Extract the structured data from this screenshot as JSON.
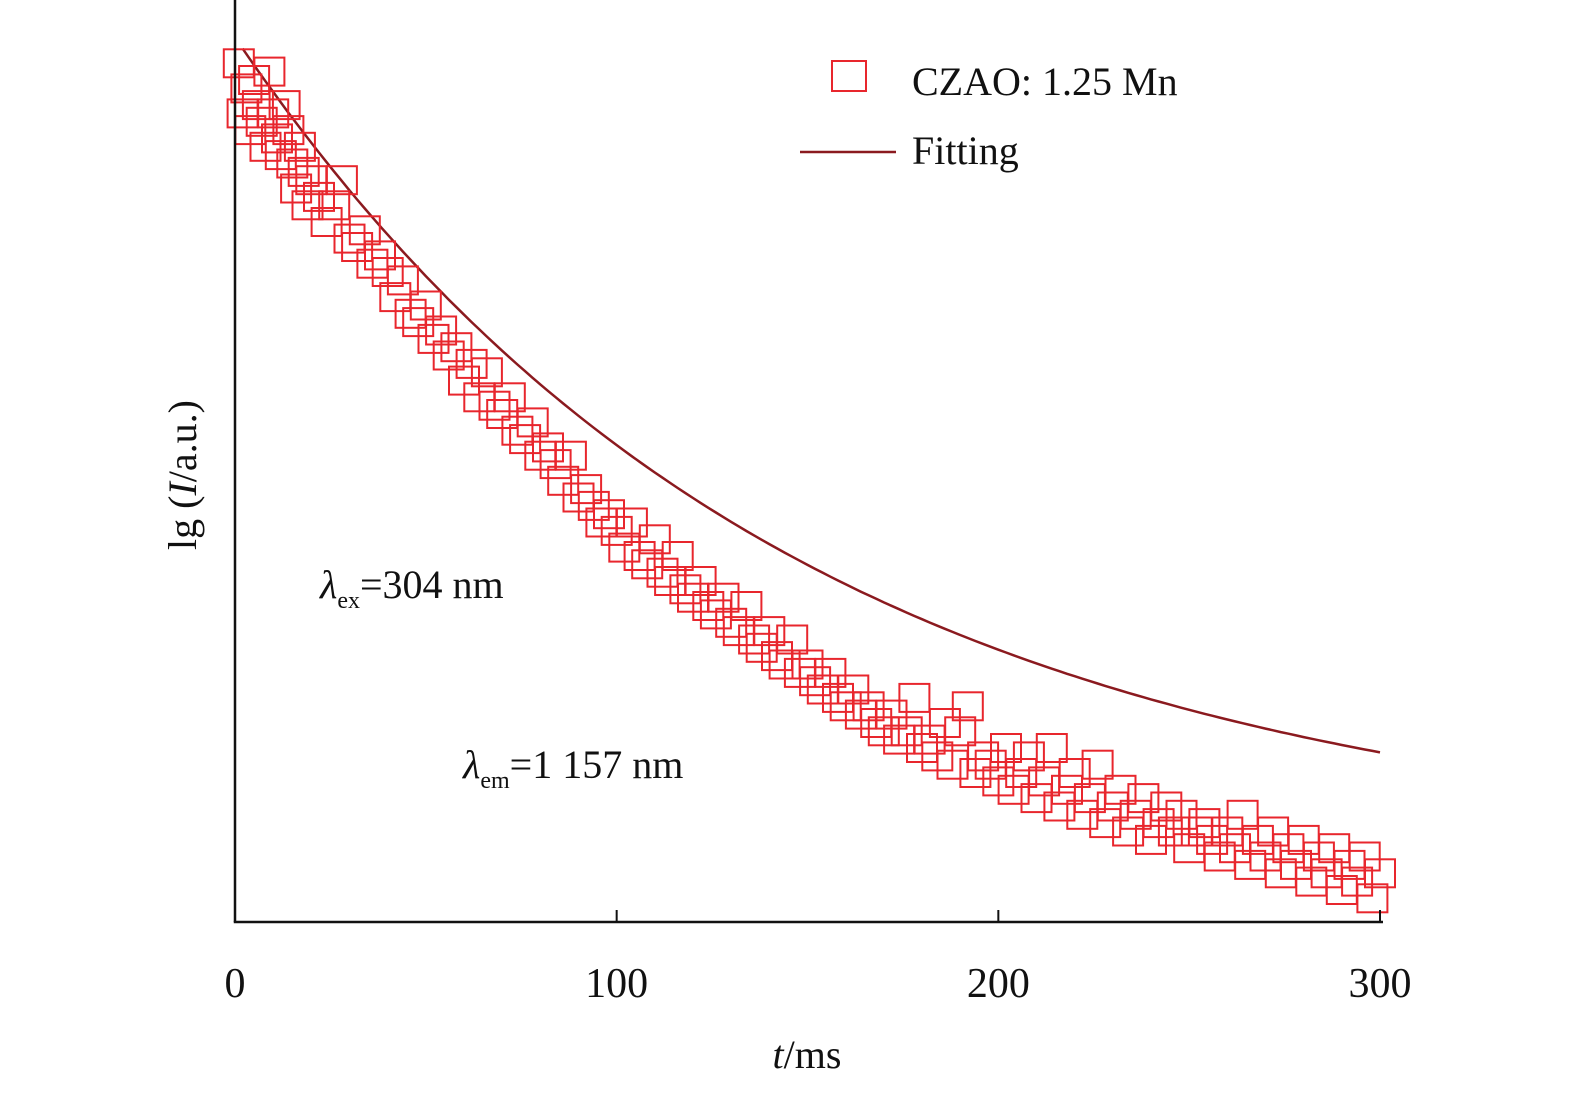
{
  "chart_data": {
    "type": "scatter",
    "title": "",
    "xlabel_italic": "t",
    "xlabel_rest": "/ms",
    "ylabel_prefix": "lg (",
    "ylabel_italic": "I",
    "ylabel_suffix": "/a.u.)",
    "xlim": [
      0,
      300
    ],
    "ylim": [
      0,
      1
    ],
    "x_ticks": [
      0,
      100,
      200,
      300
    ],
    "x_tick_labels": [
      "0",
      "100",
      "200",
      "300"
    ],
    "y_ticks_labeled": false,
    "legend_position": "top-right",
    "legend": [
      {
        "label": "CZAO: 1.25 Mn",
        "marker": "open-square"
      },
      {
        "label": "Fitting",
        "marker": "line"
      }
    ],
    "annotations": [
      {
        "symbol": "λ",
        "subscript": "ex",
        "text": "=304 nm"
      },
      {
        "symbol": "λ",
        "subscript": "em",
        "text": "=1 157 nm"
      }
    ],
    "colors": {
      "data": "#e8262d",
      "fit": "#8b1a1f",
      "axis": "#111111"
    },
    "fit": {
      "model": "y = A·exp(-x/tau) + C",
      "A": 0.98,
      "tau": 145,
      "C": 0.071,
      "x_range": [
        2,
        300
      ]
    },
    "series": [
      {
        "name": "CZAO: 1.25 Mn",
        "x": [
          1,
          2,
          3,
          4,
          5,
          6,
          7,
          8,
          9,
          10,
          11,
          12,
          13,
          14,
          15,
          16,
          17,
          18,
          19,
          20,
          22,
          24,
          26,
          28,
          30,
          32,
          34,
          36,
          38,
          40,
          42,
          44,
          46,
          48,
          50,
          52,
          54,
          56,
          58,
          60,
          62,
          64,
          66,
          68,
          70,
          72,
          74,
          76,
          78,
          80,
          82,
          84,
          86,
          88,
          90,
          92,
          94,
          96,
          98,
          100,
          102,
          104,
          106,
          108,
          110,
          112,
          114,
          116,
          118,
          120,
          122,
          124,
          126,
          128,
          130,
          132,
          134,
          136,
          138,
          140,
          142,
          144,
          146,
          148,
          150,
          152,
          154,
          156,
          158,
          160,
          162,
          164,
          166,
          168,
          170,
          172,
          174,
          176,
          178,
          180,
          182,
          184,
          186,
          188,
          190,
          192,
          194,
          196,
          198,
          200,
          202,
          204,
          206,
          208,
          210,
          212,
          214,
          216,
          218,
          220,
          222,
          224,
          226,
          228,
          230,
          232,
          234,
          236,
          238,
          240,
          242,
          244,
          246,
          248,
          250,
          252,
          254,
          256,
          258,
          260,
          262,
          264,
          266,
          268,
          270,
          272,
          274,
          276,
          278,
          280,
          282,
          284,
          286,
          288,
          290,
          292,
          294,
          296,
          298,
          300
        ],
        "y": [
          1.02,
          0.96,
          0.99,
          0.94,
          1.0,
          0.97,
          0.95,
          0.92,
          1.01,
          0.96,
          0.93,
          0.91,
          0.97,
          0.94,
          0.9,
          0.87,
          0.92,
          0.89,
          0.85,
          0.88,
          0.86,
          0.83,
          0.85,
          0.88,
          0.81,
          0.8,
          0.82,
          0.78,
          0.79,
          0.77,
          0.74,
          0.76,
          0.72,
          0.71,
          0.73,
          0.69,
          0.7,
          0.67,
          0.68,
          0.64,
          0.66,
          0.62,
          0.65,
          0.61,
          0.6,
          0.62,
          0.58,
          0.57,
          0.59,
          0.55,
          0.56,
          0.54,
          0.52,
          0.55,
          0.5,
          0.51,
          0.49,
          0.47,
          0.48,
          0.46,
          0.44,
          0.47,
          0.43,
          0.42,
          0.45,
          0.41,
          0.4,
          0.43,
          0.39,
          0.38,
          0.4,
          0.37,
          0.36,
          0.38,
          0.35,
          0.34,
          0.37,
          0.33,
          0.32,
          0.34,
          0.31,
          0.3,
          0.33,
          0.29,
          0.3,
          0.28,
          0.27,
          0.29,
          0.26,
          0.25,
          0.27,
          0.24,
          0.25,
          0.23,
          0.22,
          0.24,
          0.21,
          0.22,
          0.26,
          0.2,
          0.21,
          0.19,
          0.23,
          0.18,
          0.22,
          0.25,
          0.17,
          0.19,
          0.18,
          0.16,
          0.2,
          0.15,
          0.17,
          0.19,
          0.14,
          0.16,
          0.2,
          0.13,
          0.15,
          0.17,
          0.12,
          0.14,
          0.18,
          0.11,
          0.13,
          0.15,
          0.1,
          0.12,
          0.14,
          0.09,
          0.11,
          0.13,
          0.1,
          0.12,
          0.08,
          0.1,
          0.11,
          0.09,
          0.07,
          0.1,
          0.08,
          0.12,
          0.06,
          0.09,
          0.07,
          0.1,
          0.05,
          0.08,
          0.06,
          0.09,
          0.04,
          0.07,
          0.05,
          0.08,
          0.03,
          0.06,
          0.04,
          0.07,
          0.02,
          0.05
        ]
      }
    ]
  }
}
